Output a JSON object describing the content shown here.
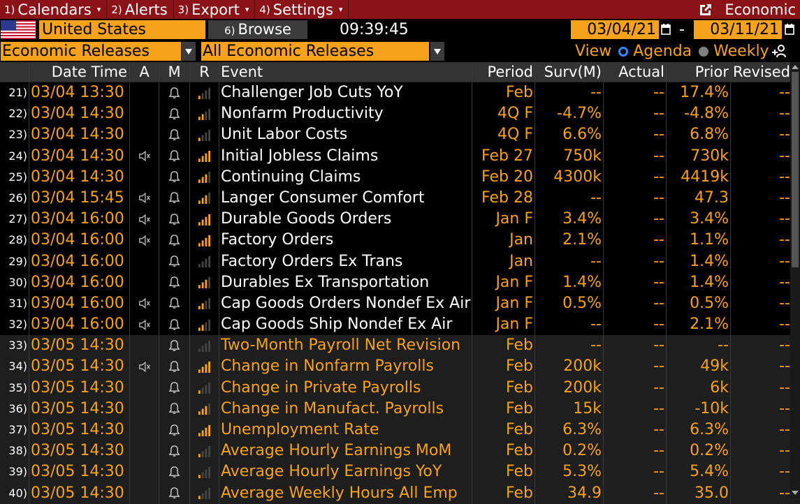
{
  "menu": [
    {
      "num": "1)",
      "label": "Calendars",
      "caret": true
    },
    {
      "num": "2)",
      "label": "Alerts",
      "caret": false
    },
    {
      "num": "3)",
      "label": "Export",
      "caret": true
    },
    {
      "num": "4)",
      "label": "Settings",
      "caret": true
    }
  ],
  "menu_right_label": "Economic",
  "country": "United States",
  "browse": {
    "num": "6)",
    "label": "Browse"
  },
  "clock": "09:39:45",
  "date_from": "03/04/21",
  "date_to": "03/11/21",
  "date_sep": "-",
  "release_type": "Economic Releases",
  "release_filter": "All Economic Releases",
  "view": {
    "label": "View",
    "agenda": "Agenda",
    "weekly": "Weekly",
    "selected": "agenda"
  },
  "columns": {
    "datetime": "Date Time",
    "a": "A",
    "m": "M",
    "r": "R",
    "event": "Event",
    "period": "Period",
    "survey": "Surv(M)",
    "actual": "Actual",
    "prior": "Prior",
    "revised": "Revised"
  },
  "colors": {
    "accent": "#f7a21b",
    "menubar": "#8b1317",
    "header": "#333333",
    "speaker_blue": "#2b8cff"
  },
  "rows": [
    {
      "num": "21)",
      "dt": "03/04 13:30",
      "speaker": false,
      "rel": 1,
      "event": "Challenger Job Cuts YoY",
      "soon": false,
      "period": "Feb",
      "survey": "--",
      "actual": "--",
      "prior": "17.4%",
      "revised": "--"
    },
    {
      "num": "22)",
      "dt": "03/04 14:30",
      "speaker": false,
      "rel": 2,
      "event": "Nonfarm Productivity",
      "soon": false,
      "period": "4Q F",
      "survey": "-4.7%",
      "actual": "--",
      "prior": "-4.8%",
      "revised": "--"
    },
    {
      "num": "23)",
      "dt": "03/04 14:30",
      "speaker": false,
      "rel": 1,
      "event": "Unit Labor Costs",
      "soon": false,
      "period": "4Q F",
      "survey": "6.6%",
      "actual": "--",
      "prior": "6.8%",
      "revised": "--"
    },
    {
      "num": "24)",
      "dt": "03/04 14:30",
      "speaker": true,
      "rel": 4,
      "event": "Initial Jobless Claims",
      "soon": false,
      "period": "Feb 27",
      "survey": "750k",
      "actual": "--",
      "prior": "730k",
      "revised": "--"
    },
    {
      "num": "25)",
      "dt": "03/04 14:30",
      "speaker": false,
      "rel": 3,
      "event": "Continuing Claims",
      "soon": false,
      "period": "Feb 20",
      "survey": "4300k",
      "actual": "--",
      "prior": "4419k",
      "revised": "--"
    },
    {
      "num": "26)",
      "dt": "03/04 15:45",
      "speaker": true,
      "rel": 3,
      "event": "Langer Consumer Comfort",
      "soon": false,
      "period": "Feb 28",
      "survey": "--",
      "actual": "--",
      "prior": "47.3",
      "revised": "--"
    },
    {
      "num": "27)",
      "dt": "03/04 16:00",
      "speaker": true,
      "rel": 4,
      "event": "Durable Goods Orders",
      "soon": false,
      "period": "Jan F",
      "survey": "3.4%",
      "actual": "--",
      "prior": "3.4%",
      "revised": "--"
    },
    {
      "num": "28)",
      "dt": "03/04 16:00",
      "speaker": true,
      "rel": 4,
      "event": "Factory Orders",
      "soon": false,
      "period": "Jan",
      "survey": "2.1%",
      "actual": "--",
      "prior": "1.1%",
      "revised": "--"
    },
    {
      "num": "29)",
      "dt": "03/04 16:00",
      "speaker": false,
      "rel": 0,
      "event": "Factory Orders Ex Trans",
      "soon": false,
      "period": "Jan",
      "survey": "--",
      "actual": "--",
      "prior": "1.4%",
      "revised": "--"
    },
    {
      "num": "30)",
      "dt": "03/04 16:00",
      "speaker": false,
      "rel": 3,
      "event": "Durables Ex Transportation",
      "soon": false,
      "period": "Jan F",
      "survey": "1.4%",
      "actual": "--",
      "prior": "1.4%",
      "revised": "--"
    },
    {
      "num": "31)",
      "dt": "03/04 16:00",
      "speaker": true,
      "rel": 2,
      "event": "Cap Goods Orders Nondef Ex Air",
      "soon": false,
      "period": "Jan F",
      "survey": "0.5%",
      "actual": "--",
      "prior": "0.5%",
      "revised": "--"
    },
    {
      "num": "32)",
      "dt": "03/04 16:00",
      "speaker": true,
      "rel": 2,
      "event": "Cap Goods Ship Nondef Ex Air",
      "soon": false,
      "period": "Jan F",
      "survey": "--",
      "actual": "--",
      "prior": "2.1%",
      "revised": "--"
    },
    {
      "num": "33)",
      "dt": "03/05 14:30",
      "speaker": false,
      "rel": 0,
      "event": "Two-Month Payroll Net Revision",
      "soon": true,
      "period": "Feb",
      "survey": "--",
      "actual": "--",
      "prior": "--",
      "revised": "--"
    },
    {
      "num": "34)",
      "dt": "03/05 14:30",
      "speaker": true,
      "rel": 4,
      "event": "Change in Nonfarm Payrolls",
      "soon": true,
      "period": "Feb",
      "survey": "200k",
      "actual": "--",
      "prior": "49k",
      "revised": "--"
    },
    {
      "num": "35)",
      "dt": "03/05 14:30",
      "speaker": false,
      "rel": 1,
      "event": "Change in Private Payrolls",
      "soon": true,
      "period": "Feb",
      "survey": "200k",
      "actual": "--",
      "prior": "6k",
      "revised": "--"
    },
    {
      "num": "36)",
      "dt": "03/05 14:30",
      "speaker": false,
      "rel": 3,
      "event": "Change in Manufact. Payrolls",
      "soon": true,
      "period": "Feb",
      "survey": "15k",
      "actual": "--",
      "prior": "-10k",
      "revised": "--"
    },
    {
      "num": "37)",
      "dt": "03/05 14:30",
      "speaker": false,
      "rel": 4,
      "event": "Unemployment Rate",
      "soon": true,
      "period": "Feb",
      "survey": "6.3%",
      "actual": "--",
      "prior": "6.3%",
      "revised": "--"
    },
    {
      "num": "38)",
      "dt": "03/05 14:30",
      "speaker": false,
      "rel": 1,
      "event": "Average Hourly Earnings MoM",
      "soon": true,
      "period": "Feb",
      "survey": "0.2%",
      "actual": "--",
      "prior": "0.2%",
      "revised": "--"
    },
    {
      "num": "39)",
      "dt": "03/05 14:30",
      "speaker": false,
      "rel": 1,
      "event": "Average Hourly Earnings YoY",
      "soon": true,
      "period": "Feb",
      "survey": "5.3%",
      "actual": "--",
      "prior": "5.4%",
      "revised": "--"
    },
    {
      "num": "40)",
      "dt": "03/05 14:30",
      "speaker": false,
      "rel": 1,
      "event": "Average Weekly Hours All Emp",
      "soon": true,
      "period": "Feb",
      "survey": "34.9",
      "actual": "--",
      "prior": "35.0",
      "revised": "--"
    }
  ]
}
